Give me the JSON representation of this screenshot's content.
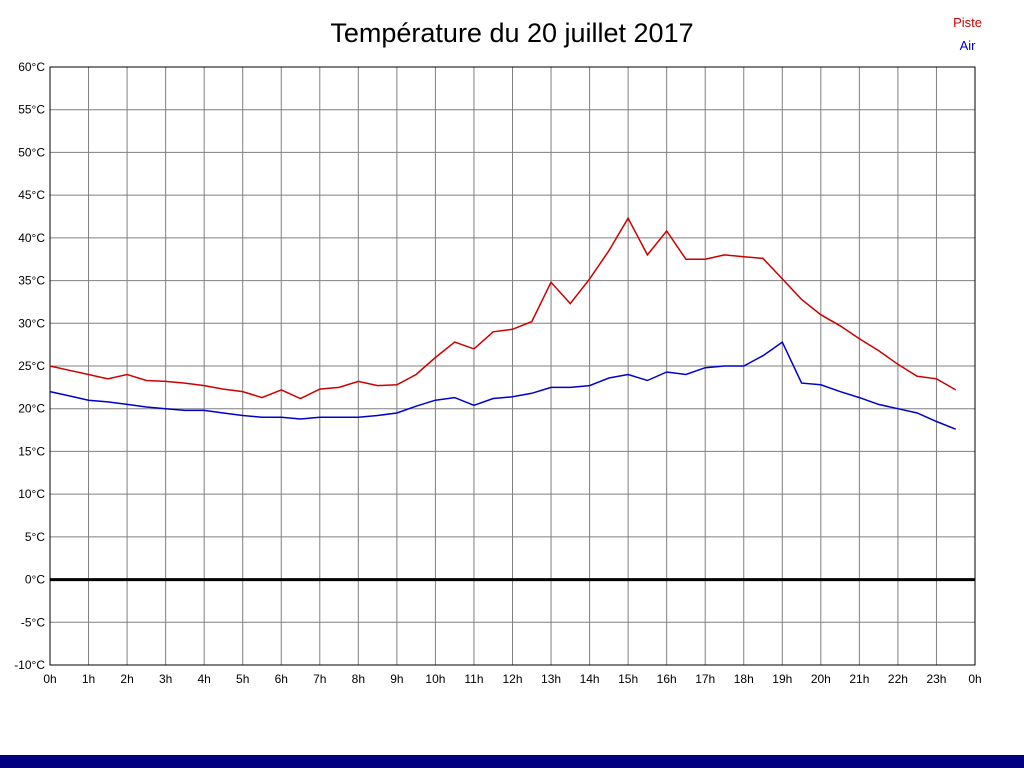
{
  "bottom_bar": {
    "color": "#000080"
  },
  "chart_data": {
    "type": "line",
    "title": "Température du 20 juillet 2017",
    "xlabel": "",
    "ylabel": "",
    "x_range": [
      0,
      24
    ],
    "ylim": [
      -10,
      60
    ],
    "y_tick_step": 5,
    "grid": true,
    "grid_color": "#808080",
    "frame_color": "#000000",
    "legend_position": "top-right",
    "zero_line": {
      "value": 0,
      "color": "#000000",
      "width": 3
    },
    "x_tick_labels": [
      "0h",
      "1h",
      "2h",
      "3h",
      "4h",
      "5h",
      "6h",
      "7h",
      "8h",
      "9h",
      "10h",
      "11h",
      "12h",
      "13h",
      "14h",
      "15h",
      "16h",
      "17h",
      "18h",
      "19h",
      "20h",
      "21h",
      "22h",
      "23h",
      "0h"
    ],
    "y_tick_labels": [
      "60°C",
      "55°C",
      "50°C",
      "45°C",
      "40°C",
      "35°C",
      "30°C",
      "25°C",
      "20°C",
      "15°C",
      "10°C",
      "5°C",
      "0°C",
      "-5°C",
      "-10°C"
    ],
    "legend": [
      {
        "name": "Piste",
        "color": "#cc0000"
      },
      {
        "name": "Air",
        "color": "#0000cc"
      }
    ],
    "series": [
      {
        "name": "Piste",
        "color": "#cc0000",
        "x": [
          0,
          0.5,
          1,
          1.5,
          2,
          2.5,
          3,
          3.5,
          4,
          4.5,
          5,
          5.5,
          6,
          6.5,
          7,
          7.5,
          8,
          8.5,
          9,
          9.5,
          10,
          10.5,
          11,
          11.5,
          12,
          12.5,
          13,
          13.5,
          14,
          14.5,
          15,
          15.5,
          16,
          16.5,
          17,
          17.5,
          18,
          18.5,
          19,
          19.5,
          20,
          20.5,
          21,
          21.5,
          22,
          22.5,
          23,
          23.5
        ],
        "values": [
          25.0,
          24.5,
          24.0,
          23.5,
          24.0,
          23.3,
          23.2,
          23.0,
          22.7,
          22.3,
          22.0,
          21.3,
          22.2,
          21.2,
          22.3,
          22.5,
          23.2,
          22.7,
          22.8,
          24.0,
          26.0,
          27.8,
          27.0,
          29.0,
          29.3,
          30.2,
          34.8,
          32.3,
          35.2,
          38.5,
          42.3,
          38.0,
          40.8,
          37.5,
          37.5,
          38.0,
          37.8,
          37.6,
          35.2,
          32.8,
          31.0,
          29.7,
          28.2,
          26.8,
          25.2,
          23.8,
          23.5,
          22.2
        ]
      },
      {
        "name": "Air",
        "color": "#0000cc",
        "x": [
          0,
          0.5,
          1,
          1.5,
          2,
          2.5,
          3,
          3.5,
          4,
          4.5,
          5,
          5.5,
          6,
          6.5,
          7,
          7.5,
          8,
          8.5,
          9,
          9.5,
          10,
          10.5,
          11,
          11.5,
          12,
          12.5,
          13,
          13.5,
          14,
          14.5,
          15,
          15.5,
          16,
          16.5,
          17,
          17.5,
          18,
          18.5,
          19,
          19.5,
          20,
          20.5,
          21,
          21.5,
          22,
          22.5,
          23,
          23.5
        ],
        "values": [
          22.0,
          21.5,
          21.0,
          20.8,
          20.5,
          20.2,
          20.0,
          19.8,
          19.8,
          19.5,
          19.2,
          19.0,
          19.0,
          18.8,
          19.0,
          19.0,
          19.0,
          19.2,
          19.5,
          20.3,
          21.0,
          21.3,
          20.4,
          21.2,
          21.4,
          21.8,
          22.5,
          22.5,
          22.7,
          23.6,
          24.0,
          23.3,
          24.3,
          24.0,
          24.8,
          25.0,
          25.0,
          26.2,
          27.8,
          23.0,
          22.8,
          22.0,
          21.3,
          20.5,
          20.0,
          19.5,
          18.5,
          17.6
        ]
      }
    ]
  }
}
